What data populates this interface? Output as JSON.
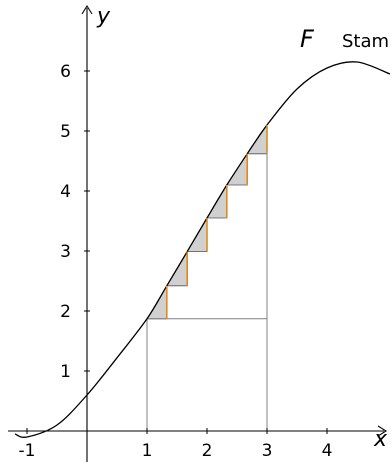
{
  "chart_data": {
    "type": "line",
    "xlabel": "x",
    "ylabel": "y",
    "xlim": [
      -1.15,
      5.05
    ],
    "ylim": [
      -0.35,
      6.9
    ],
    "xticks": [
      -1,
      1,
      2,
      3,
      4
    ],
    "yticks": [
      1,
      2,
      3,
      4,
      5,
      6
    ],
    "x_tick_labels": [
      "-1",
      "1",
      "2",
      "3",
      "4"
    ],
    "y_tick_labels": [
      "1",
      "2",
      "3",
      "4",
      "5",
      "6"
    ],
    "grid": false,
    "series": [
      {
        "name": "F",
        "x": [
          -1.2,
          -1.0,
          -0.5,
          0.0,
          0.5,
          1.0,
          1.33,
          1.67,
          2.0,
          2.33,
          2.67,
          3.0,
          3.5,
          4.0,
          4.5,
          5.05
        ],
        "y": [
          -0.05,
          -0.1,
          0.1,
          0.6,
          1.22,
          1.87,
          2.42,
          2.99,
          3.55,
          4.1,
          4.62,
          5.1,
          5.7,
          6.05,
          6.15,
          5.95
        ]
      }
    ],
    "curve_label": "F",
    "curve_sublabel": "Stam",
    "interval": [
      1,
      3
    ],
    "steps": [
      {
        "x0": 1.0,
        "x1": 1.33,
        "y0": 1.87,
        "y1": 2.42
      },
      {
        "x0": 1.33,
        "x1": 1.67,
        "y0": 2.42,
        "y1": 2.99
      },
      {
        "x0": 1.67,
        "x1": 2.0,
        "y0": 2.99,
        "y1": 3.55
      },
      {
        "x0": 2.0,
        "x1": 2.33,
        "y0": 3.55,
        "y1": 4.1
      },
      {
        "x0": 2.33,
        "x1": 2.67,
        "y0": 4.1,
        "y1": 4.62
      },
      {
        "x0": 2.67,
        "x1": 3.0,
        "y0": 4.62,
        "y1": 5.1
      }
    ],
    "colors": {
      "curve": "#000000",
      "axis": "#000000",
      "guide": "#808080",
      "fill": "#d0d0d0",
      "rise": "#e08a1e"
    }
  }
}
